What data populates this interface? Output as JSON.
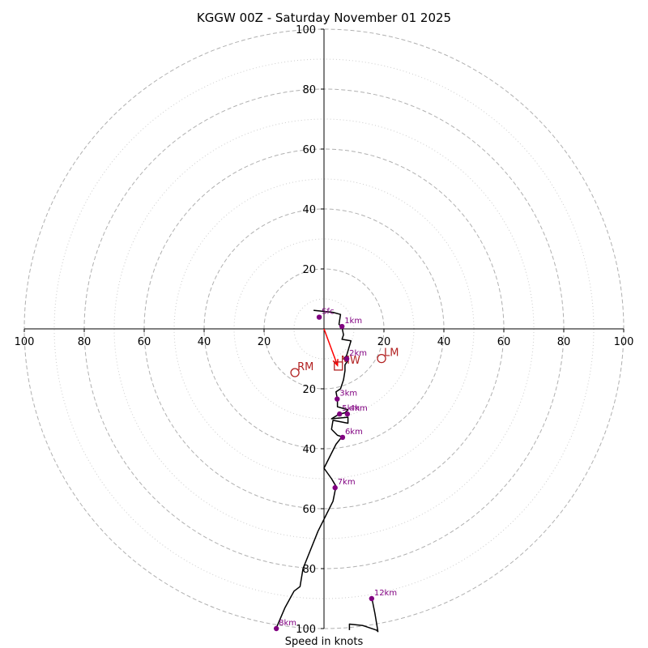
{
  "chart_data": {
    "type": "hodograph",
    "title": "KGGW 00Z - Saturday November 01 2025",
    "xlabel": "Speed in knots",
    "units": "kt",
    "range": [
      -100,
      100
    ],
    "major_rings": [
      20,
      40,
      60,
      80,
      100
    ],
    "minor_rings": [
      10,
      30,
      50,
      70,
      90
    ],
    "x_ticks": [
      "100",
      "80",
      "60",
      "40",
      "20",
      "20",
      "40",
      "60",
      "80",
      "100"
    ],
    "y_ticks": [
      "100",
      "80",
      "60",
      "40",
      "20",
      "20",
      "40",
      "60",
      "80",
      "100"
    ],
    "colors": {
      "major_ring": "#b0b0b0",
      "minor_ring": "#cccccc",
      "trace": "#000000",
      "points": "#800080",
      "motion": "#b22222",
      "shear_arrow": "#ff0000",
      "axes": "#000000"
    },
    "trace": [
      [
        -3.5,
        6.2
      ],
      [
        3.0,
        5.5
      ],
      [
        5.5,
        4.8
      ],
      [
        5.0,
        1.5
      ],
      [
        6.0,
        0.5
      ],
      [
        6.5,
        -2.0
      ],
      [
        6.0,
        -3.5
      ],
      [
        9.0,
        -4.0
      ],
      [
        7.5,
        -9.0
      ],
      [
        6.5,
        -10.0
      ],
      [
        8.0,
        -10.5
      ],
      [
        7.0,
        -12.0
      ],
      [
        7.0,
        -14.0
      ],
      [
        6.5,
        -17.0
      ],
      [
        5.5,
        -20.0
      ],
      [
        4.0,
        -21.0
      ],
      [
        4.5,
        -23.5
      ],
      [
        4.5,
        -26.0
      ],
      [
        8.0,
        -27.0
      ],
      [
        7.0,
        -28.0
      ],
      [
        5.0,
        -28.5
      ],
      [
        2.5,
        -30.0
      ],
      [
        8.0,
        -29.5
      ],
      [
        8.0,
        -31.5
      ],
      [
        3.0,
        -30.5
      ],
      [
        2.5,
        -33.5
      ],
      [
        4.5,
        -35.5
      ],
      [
        6.0,
        -36.0
      ],
      [
        4.0,
        -38.5
      ],
      [
        0.0,
        -46.5
      ],
      [
        2.5,
        -50.0
      ],
      [
        4.0,
        -52.5
      ],
      [
        3.0,
        -57.5
      ],
      [
        -2.0,
        -67.5
      ],
      [
        -7.0,
        -80.0
      ],
      [
        -8.0,
        -86.0
      ],
      [
        -10.0,
        -87.5
      ],
      [
        -13.0,
        -93.0
      ],
      [
        -16.0,
        -100.0
      ]
    ],
    "trace2": [
      [
        16.0,
        -90.0
      ],
      [
        17.0,
        -95.0
      ],
      [
        18.0,
        -101.0
      ],
      [
        17.5,
        -100.5
      ],
      [
        13.0,
        -99.0
      ],
      [
        8.5,
        -98.5
      ],
      [
        8.5,
        -100.5
      ]
    ],
    "height_points": [
      {
        "label": "Sfc",
        "u": -1.6,
        "v": 3.9
      },
      {
        "label": "1km",
        "u": 6.0,
        "v": 0.8
      },
      {
        "label": "2km",
        "u": 7.6,
        "v": -10.0
      },
      {
        "label": "3km",
        "u": 4.4,
        "v": -23.4
      },
      {
        "label": "4km",
        "u": 7.8,
        "v": -28.4
      },
      {
        "label": "5km",
        "u": 5.2,
        "v": -28.4
      },
      {
        "label": "6km",
        "u": 6.2,
        "v": -36.2
      },
      {
        "label": "7km",
        "u": 3.7,
        "v": -53.0
      },
      {
        "label": "8km",
        "u": -15.9,
        "v": -100.0
      },
      {
        "label": "12km",
        "u": 15.9,
        "v": -90.0
      }
    ],
    "storm_motions": [
      {
        "label": "RM",
        "u": -9.7,
        "v": -14.6,
        "marker": "circle"
      },
      {
        "label": "LM",
        "u": 19.2,
        "v": -9.9,
        "marker": "circle"
      },
      {
        "label": "MW",
        "u": 4.8,
        "v": -12.4,
        "marker": "square"
      }
    ],
    "shear_arrow": {
      "from": [
        0.0,
        0.0
      ],
      "to": [
        4.5,
        -12.2
      ]
    }
  }
}
